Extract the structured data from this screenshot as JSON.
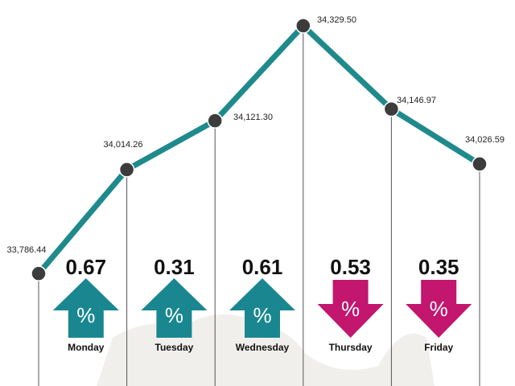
{
  "chart_data": {
    "type": "line",
    "categories": [
      null,
      "Monday",
      "Tuesday",
      "Wednesday",
      "Thursday",
      "Friday"
    ],
    "values": [
      33786.44,
      34014.26,
      34121.3,
      34329.5,
      34146.97,
      34026.59
    ],
    "value_labels": [
      "33,786.44",
      "34,014.26",
      "34,121.30",
      "34,329.50",
      "34,146.97",
      "34,026.59"
    ],
    "changes": [
      null,
      0.67,
      0.31,
      0.61,
      0.53,
      0.35
    ],
    "directions": [
      null,
      "up",
      "up",
      "up",
      "down",
      "down"
    ],
    "change_symbol": "%",
    "color": "#1f8a8c",
    "up_color": "#1a8790",
    "down_color": "#c2166f",
    "ylim": [
      33540,
      34386
    ]
  }
}
